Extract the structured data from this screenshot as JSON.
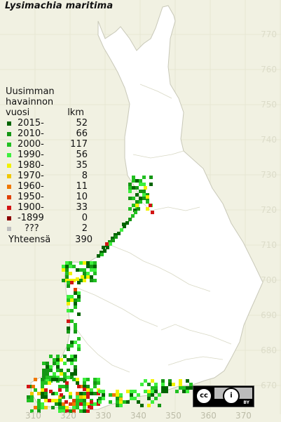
{
  "title": "Lysimachia maritima",
  "legend": {
    "heading_lines": [
      "Uusimman",
      "havainnon"
    ],
    "col_year": "vuosi",
    "col_count": "lkm",
    "entries": [
      {
        "label": "2015-",
        "count": "52",
        "color": "#006400"
      },
      {
        "label": "2010-",
        "count": "66",
        "color": "#149614"
      },
      {
        "label": "2000-",
        "count": "117",
        "color": "#21c021"
      },
      {
        "label": "1990-",
        "count": "56",
        "color": "#3df03d"
      },
      {
        "label": "1980-",
        "count": "35",
        "color": "#f2f200"
      },
      {
        "label": "1970-",
        "count": "8",
        "color": "#f0c800"
      },
      {
        "label": "1960-",
        "count": "11",
        "color": "#f07800"
      },
      {
        "label": "1950-",
        "count": "10",
        "color": "#e04000"
      },
      {
        "label": "1900-",
        "count": "33",
        "color": "#d21414"
      },
      {
        "label": "-1899",
        "count": "0",
        "color": "#8b0000"
      },
      {
        "label": "???",
        "count": "2",
        "color": "#bebebe"
      }
    ],
    "total_label": "Yhteensä",
    "total_count": "390"
  },
  "grid_labels": {
    "north": [
      "770",
      "760",
      "750",
      "740",
      "730",
      "720",
      "710",
      "700",
      "690",
      "680",
      "670"
    ],
    "east": [
      "310",
      "320",
      "330",
      "340",
      "350",
      "360",
      "370"
    ]
  },
  "license_badge": {
    "cc": "cc",
    "by": "BY"
  },
  "colors": {
    "background": "#f1f1e2",
    "land": "#ffffff",
    "grid": "#e4e4d0",
    "border": "#c8c8b8"
  }
}
